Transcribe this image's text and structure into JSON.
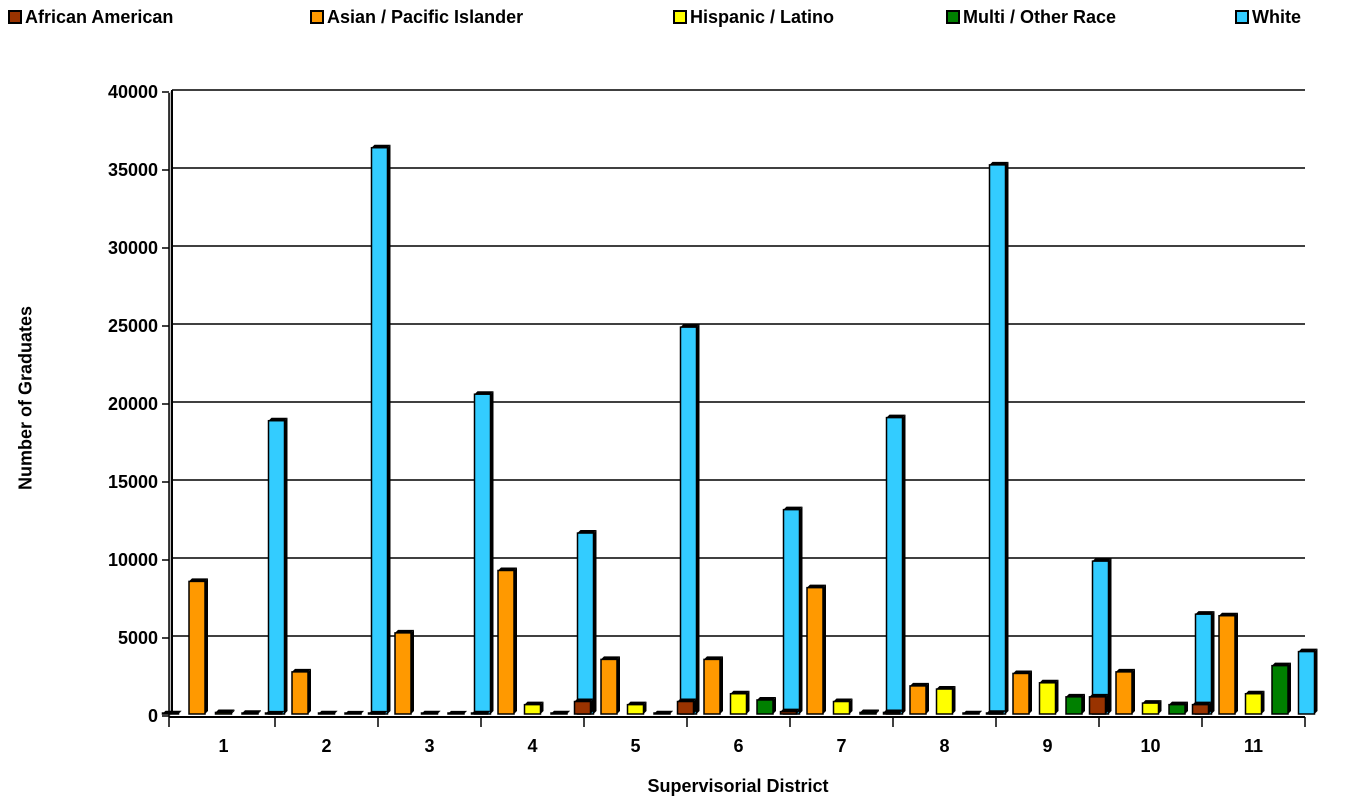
{
  "chart_data": {
    "type": "bar",
    "xlabel": "Supervisorial District",
    "ylabel": "Number of Graduates",
    "ylim": [
      0,
      40000
    ],
    "yticks": [
      0,
      5000,
      10000,
      15000,
      20000,
      25000,
      30000,
      35000,
      40000
    ],
    "grid": true,
    "legend_position": "top",
    "categories": [
      "1",
      "2",
      "3",
      "4",
      "5",
      "6",
      "7",
      "8",
      "9",
      "10",
      "11"
    ],
    "series": [
      {
        "name": "African American",
        "color": "#993300",
        "values": [
          20,
          10,
          10,
          20,
          800,
          800,
          150,
          100,
          50,
          1100,
          600
        ]
      },
      {
        "name": "Asian / Pacific Islander",
        "color": "#FF9900",
        "values": [
          8500,
          2700,
          5200,
          9200,
          3500,
          3500,
          8100,
          1800,
          2600,
          2700,
          6300
        ]
      },
      {
        "name": "Hispanic  / Latino",
        "color": "#FFFF00",
        "values": [
          100,
          20,
          20,
          600,
          600,
          1300,
          800,
          1600,
          2000,
          700,
          1300
        ]
      },
      {
        "name": "Multi / Other Race",
        "color": "#008000",
        "values": [
          50,
          10,
          10,
          20,
          20,
          900,
          100,
          20,
          1100,
          600,
          3100
        ]
      },
      {
        "name": "White",
        "color": "#33CCFF",
        "values": [
          18800,
          36300,
          20500,
          11600,
          24800,
          13100,
          19000,
          35200,
          9800,
          6400,
          4000
        ]
      }
    ]
  }
}
